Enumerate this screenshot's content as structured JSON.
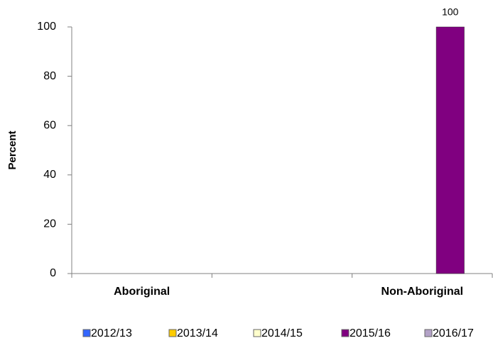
{
  "chart_data": {
    "type": "bar",
    "y_label": "Percent",
    "categories": [
      "Aboriginal",
      null,
      "Non-Aboriginal"
    ],
    "series": [
      {
        "name": "2012/13",
        "color": "#3366ff",
        "values": [
          null,
          null,
          null
        ]
      },
      {
        "name": "2013/14",
        "color": "#ffcc00",
        "values": [
          null,
          null,
          null
        ]
      },
      {
        "name": "2014/15",
        "color": "#ffffcc",
        "values": [
          null,
          null,
          null
        ]
      },
      {
        "name": "2015/16",
        "color": "#800080",
        "values": [
          null,
          null,
          100
        ]
      },
      {
        "name": "2016/17",
        "color": "#b3a2c7",
        "values": [
          null,
          null,
          null
        ]
      }
    ],
    "ylim": [
      0,
      100
    ],
    "yticks": [
      0,
      20,
      40,
      60,
      80,
      100
    ],
    "grid": false,
    "legend": "bottom"
  }
}
